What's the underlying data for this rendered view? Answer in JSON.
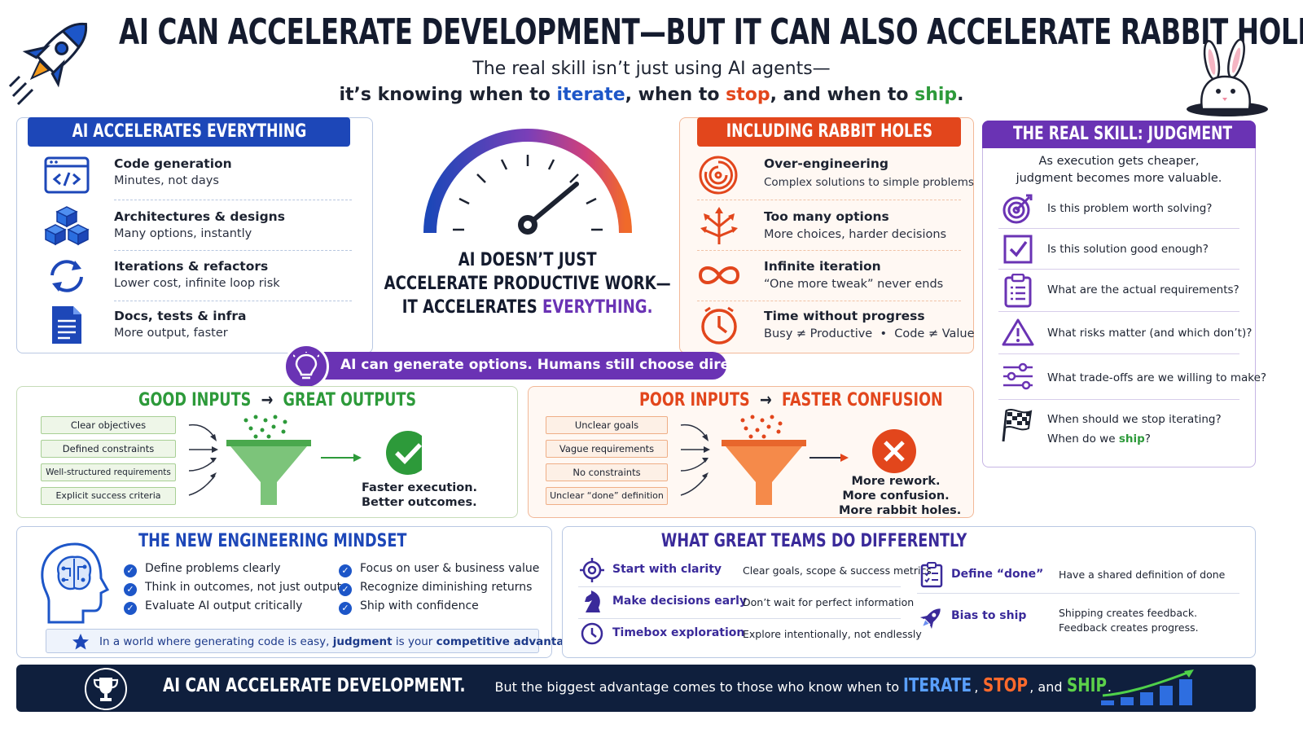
{
  "header": {
    "title": "AI CAN ACCELERATE DEVELOPMENT—BUT IT CAN ALSO ACCELERATE RABBIT HOLES",
    "subtitle_line1": "The real skill isn’t just using AI agents—",
    "subtitle_pre": "it’s knowing when to ",
    "subtitle_w1": "iterate",
    "subtitle_mid1": ", when to ",
    "subtitle_w2": "stop",
    "subtitle_mid2": ", and when to ",
    "subtitle_w3": "ship",
    "subtitle_end": "."
  },
  "accelerates": {
    "header": "AI ACCELERATES EVERYTHING",
    "items": [
      {
        "title": "Code generation",
        "sub": "Minutes, not days",
        "icon": "code-window-icon"
      },
      {
        "title": "Architectures & designs",
        "sub": "Many options, instantly",
        "icon": "cubes-icon"
      },
      {
        "title": "Iterations & refactors",
        "sub": "Lower cost, infinite loop risk",
        "icon": "refresh-icon"
      },
      {
        "title": "Docs, tests & infra",
        "sub": "More output, faster",
        "icon": "document-icon"
      }
    ]
  },
  "center": {
    "line1": "AI DOESN’T JUST",
    "line2": "ACCELERATE PRODUCTIVE WORK—",
    "line3_pre": "IT ACCELERATES ",
    "line3_em": "EVERYTHING."
  },
  "rabbit": {
    "header": "INCLUDING RABBIT HOLES",
    "items": [
      {
        "title": "Over-engineering",
        "sub": "Complex solutions to simple problems",
        "icon": "maze-icon"
      },
      {
        "title": "Too many options",
        "sub": "More choices, harder decisions",
        "icon": "split-arrows-icon"
      },
      {
        "title": "Infinite iteration",
        "sub": "“One more tweak” never ends",
        "icon": "infinity-icon"
      },
      {
        "title": "Time without progress",
        "sub": "Busy ≠ Productive  •  Code ≠ Value",
        "icon": "clock-icon"
      }
    ]
  },
  "judgment": {
    "header": "THE REAL SKILL: JUDGMENT",
    "intro1": "As execution gets cheaper,",
    "intro2": "judgment becomes more valuable.",
    "questions": [
      {
        "text": "Is this problem worth solving?",
        "icon": "target-icon"
      },
      {
        "text": "Is this solution good enough?",
        "icon": "checkbox-icon"
      },
      {
        "text": "What are the actual requirements?",
        "icon": "clipboard-icon"
      },
      {
        "text": "What risks matter (and which don’t)?",
        "icon": "warning-icon"
      },
      {
        "text": "What trade-offs are we willing to make?",
        "icon": "sliders-icon"
      }
    ],
    "last_q1": "When should we stop iterating?",
    "last_q2_pre": "When do we ",
    "last_q2_em": "ship",
    "last_q2_end": "?"
  },
  "banner": {
    "text": "AI can generate options. Humans still choose direction."
  },
  "good": {
    "title_left": "GOOD INPUTS",
    "arrow": "→",
    "title_right": "GREAT OUTPUTS",
    "inputs": [
      "Clear objectives",
      "Defined constraints",
      "Well-structured requirements",
      "Explicit success criteria"
    ],
    "result1": "Faster execution.",
    "result2": "Better outcomes."
  },
  "poor": {
    "title_left": "POOR INPUTS",
    "arrow": "→",
    "title_right": "FASTER CONFUSION",
    "inputs": [
      "Unclear goals",
      "Vague requirements",
      "No constraints",
      "Unclear “done” definition"
    ],
    "result1": "More rework.",
    "result2": "More confusion.",
    "result3": "More rabbit holes."
  },
  "mindset": {
    "header": "THE NEW ENGINEERING MINDSET",
    "left": [
      "Define problems clearly",
      "Think in outcomes, not just output",
      "Evaluate AI output critically"
    ],
    "right": [
      "Focus on user & business value",
      "Recognize diminishing returns",
      "Ship with confidence"
    ],
    "footer_pre": "In a world where generating code is easy, ",
    "footer_em1": "judgment",
    "footer_mid": " is your ",
    "footer_em2": "competitive advantage."
  },
  "teams": {
    "header": "WHAT GREAT TEAMS DO DIFFERENTLY",
    "left": [
      {
        "title": "Start with clarity",
        "desc": "Clear goals, scope & success metrics",
        "icon": "crosshair-icon"
      },
      {
        "title": "Make decisions early",
        "desc": "Don’t wait for perfect information",
        "icon": "chess-knight-icon"
      },
      {
        "title": "Timebox exploration",
        "desc": "Explore intentionally, not endlessly",
        "icon": "clock-icon"
      }
    ],
    "right": [
      {
        "title": "Define “done”",
        "desc1": "Have a shared definition of done",
        "desc2": "",
        "icon": "checklist-icon"
      },
      {
        "title": "Bias to ship",
        "desc1": "Shipping creates feedback.",
        "desc2": "Feedback creates progress.",
        "icon": "rocket-icon"
      }
    ]
  },
  "footer": {
    "bold": "AI CAN ACCELERATE DEVELOPMENT.",
    "text": " But the biggest advantage comes to those who know when to ",
    "w1": "ITERATE",
    "sep1": ", ",
    "w2": "STOP",
    "sep2": ", and ",
    "w3": "SHIP",
    "end": "."
  },
  "colors": {
    "blue": "#1d56c8",
    "orange": "#e2461c",
    "green": "#2d9a3a",
    "purple": "#6a33b4",
    "navy": "#0f1f3d"
  }
}
